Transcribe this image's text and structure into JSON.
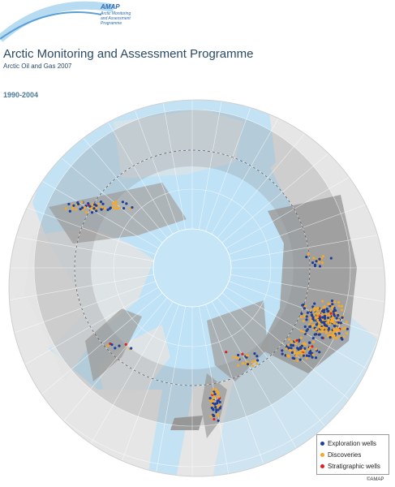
{
  "header": {
    "logo": "AMAP",
    "logo_subtitle": "Arctic Monitoring and Assessment Programme",
    "title": "Arctic Monitoring and Assessment Programme",
    "subtitle": "Arctic Oil and Gas 2007",
    "period": "1990-2004"
  },
  "legend": {
    "items": [
      "Exploration wells",
      "Discoveries",
      "Stratigraphic wells"
    ]
  },
  "credit": "©AMAP"
}
